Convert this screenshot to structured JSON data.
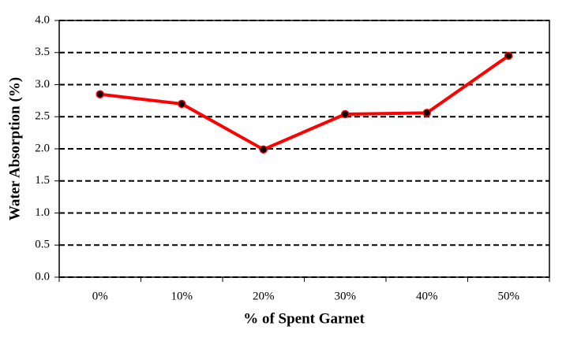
{
  "chart_data": {
    "type": "line",
    "x_label": "% of Spent Garnet",
    "y_label": "Water Absorption (%)",
    "categories": [
      "0%",
      "10%",
      "20%",
      "30%",
      "40%",
      "50%"
    ],
    "series": [
      {
        "name": "Water Absorption",
        "color": "#ff0000",
        "values": [
          2.85,
          2.7,
          1.99,
          2.54,
          2.56,
          3.45
        ]
      }
    ],
    "ylim": [
      0,
      4
    ],
    "yticks": [
      {
        "value": 0,
        "label": "0.0"
      },
      0.5,
      {
        "value": 1,
        "label": "1.0"
      },
      1.5,
      {
        "value": 2,
        "label": "2.0"
      },
      2.5,
      {
        "value": 3,
        "label": "3.0"
      },
      3.5,
      {
        "value": 4,
        "label": "4.0"
      }
    ],
    "grid": true
  }
}
